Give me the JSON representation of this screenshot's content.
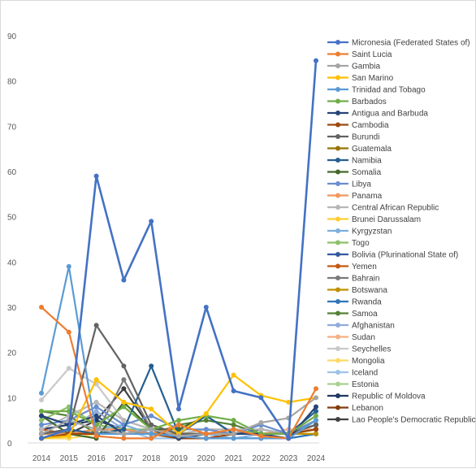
{
  "chart_data": {
    "type": "line",
    "title": "",
    "xlabel": "",
    "ylabel": "",
    "ylim": [
      0,
      90
    ],
    "y_ticks": [
      0,
      10,
      20,
      30,
      40,
      50,
      60,
      70,
      80,
      90
    ],
    "x": [
      "2014",
      "2015",
      "2016",
      "2017",
      "2018",
      "2019",
      "2020",
      "2021",
      "2022",
      "2023",
      "2024"
    ],
    "grid": false,
    "legend_position": "right",
    "series": [
      {
        "name": "Micronesia (Federated States of)",
        "color": "#4472C4",
        "values": [
          1,
          3,
          59,
          36,
          49,
          7.5,
          30,
          11.5,
          10,
          1,
          84.5
        ]
      },
      {
        "name": "Saint Lucia",
        "color": "#ED7D31",
        "values": [
          30,
          24.5,
          1.5,
          1,
          1,
          4,
          2,
          3,
          1.5,
          1,
          12
        ]
      },
      {
        "name": "Gambia",
        "color": "#A5A5A5",
        "values": [
          2,
          5,
          3,
          2,
          3,
          1.5,
          2,
          2,
          4.5,
          5.5,
          10
        ]
      },
      {
        "name": "San Marino",
        "color": "#FFC000",
        "values": [
          1,
          1.5,
          14,
          9,
          7.5,
          2,
          6.5,
          15,
          10.5,
          9,
          10
        ]
      },
      {
        "name": "Trinidad and Tobago",
        "color": "#5B9BD5",
        "values": [
          11,
          39,
          2,
          2,
          2,
          1.5,
          1,
          1,
          1,
          1,
          5
        ]
      },
      {
        "name": "Barbados",
        "color": "#70AD47",
        "values": [
          7,
          7,
          4,
          8,
          3,
          5,
          6,
          5,
          2,
          2,
          6
        ]
      },
      {
        "name": "Antigua and Barbuda",
        "color": "#264478",
        "values": [
          6,
          4,
          6,
          2,
          3,
          1,
          2,
          2,
          2,
          1,
          8
        ]
      },
      {
        "name": "Cambodia",
        "color": "#9E480E",
        "values": [
          1,
          2,
          2,
          2,
          2,
          1,
          1,
          2,
          2,
          2,
          3
        ]
      },
      {
        "name": "Burundi",
        "color": "#636363",
        "values": [
          2,
          3,
          26,
          17,
          4,
          2,
          2,
          2,
          2,
          2,
          4
        ]
      },
      {
        "name": "Guatemala",
        "color": "#997300",
        "values": [
          1,
          2,
          2,
          2,
          2,
          2,
          2,
          2,
          2,
          2,
          3
        ]
      },
      {
        "name": "Namibia",
        "color": "#255E91",
        "values": [
          2,
          3,
          2,
          3,
          17,
          2,
          6,
          2,
          2,
          2,
          7
        ]
      },
      {
        "name": "Somalia",
        "color": "#43682B",
        "values": [
          6,
          2,
          1,
          9,
          3,
          3,
          6,
          2,
          2,
          2,
          4
        ]
      },
      {
        "name": "Libya",
        "color": "#698ED0",
        "values": [
          4,
          5,
          8,
          4,
          6,
          3,
          3,
          2,
          4,
          2,
          5
        ]
      },
      {
        "name": "Panama",
        "color": "#F1975A",
        "values": [
          2,
          2,
          3,
          3,
          2,
          4,
          2,
          2,
          2,
          2,
          3
        ]
      },
      {
        "name": "Central African Republic",
        "color": "#B7B7B7",
        "values": [
          3,
          6,
          9,
          5,
          3,
          2,
          3,
          3,
          3,
          2,
          4
        ]
      },
      {
        "name": "Brunei Darussalam",
        "color": "#FFCD33",
        "values": [
          1,
          2,
          3,
          2,
          2,
          1,
          2,
          2,
          2,
          2,
          3
        ]
      },
      {
        "name": "Kyrgyzstan",
        "color": "#7CAFDD",
        "values": [
          2,
          2,
          3,
          4,
          2,
          1,
          2,
          1,
          2,
          2,
          3
        ]
      },
      {
        "name": "Togo",
        "color": "#8CC168",
        "values": [
          5,
          8,
          4,
          3,
          3,
          2,
          2,
          3,
          2,
          2,
          4
        ]
      },
      {
        "name": "Bolivia (Plurinational State of)",
        "color": "#335AA1",
        "values": [
          2,
          3,
          2,
          2,
          2,
          2,
          2,
          2,
          3,
          2,
          4
        ]
      },
      {
        "name": "Yemen",
        "color": "#C65911",
        "values": [
          3,
          2,
          2,
          2,
          2,
          2,
          2,
          2,
          2,
          2,
          3
        ]
      },
      {
        "name": "Bahrain",
        "color": "#7B7B7B",
        "values": [
          2,
          2,
          2,
          14,
          3,
          2,
          2,
          2,
          2,
          2,
          3
        ]
      },
      {
        "name": "Botswana",
        "color": "#BF9000",
        "values": [
          2,
          2,
          2,
          2,
          2,
          2,
          2,
          2,
          2,
          2,
          2
        ]
      },
      {
        "name": "Rwanda",
        "color": "#2E75B6",
        "values": [
          1,
          2,
          2,
          2,
          2,
          1,
          1,
          1,
          1,
          1,
          2
        ]
      },
      {
        "name": "Samoa",
        "color": "#548235",
        "values": [
          7,
          6,
          2,
          3,
          2,
          4,
          5,
          4,
          2,
          2,
          5
        ]
      },
      {
        "name": "Afghanistan",
        "color": "#8FAADC",
        "values": [
          2,
          3,
          7,
          3,
          2,
          2,
          2,
          2,
          3,
          2,
          4
        ]
      },
      {
        "name": "Sudan",
        "color": "#F4B183",
        "values": [
          2,
          2,
          2,
          2,
          2,
          2,
          2,
          2,
          2,
          3,
          3
        ]
      },
      {
        "name": "Seychelles",
        "color": "#C9C9C9",
        "values": [
          9.5,
          16.5,
          13,
          5,
          3,
          2,
          3,
          3,
          2,
          2,
          4
        ]
      },
      {
        "name": "Mongolia",
        "color": "#FFD966",
        "values": [
          1,
          1,
          2,
          2,
          2,
          1,
          2,
          2,
          2,
          2,
          2
        ]
      },
      {
        "name": "Iceland",
        "color": "#9DC3E6",
        "values": [
          1,
          2,
          3,
          3,
          1,
          1,
          1,
          1,
          1,
          1,
          2
        ]
      },
      {
        "name": "Estonia",
        "color": "#A9D18E",
        "values": [
          1,
          2,
          2,
          2,
          2,
          2,
          2,
          2,
          2,
          2,
          2
        ]
      },
      {
        "name": "Republic of Moldova",
        "color": "#203864",
        "values": [
          3,
          4,
          5,
          3,
          2,
          2,
          2,
          2,
          2,
          2,
          3
        ]
      },
      {
        "name": "Lebanon",
        "color": "#843C0C",
        "values": [
          2,
          2,
          2,
          2,
          2,
          2,
          2,
          2,
          2,
          2,
          3
        ]
      },
      {
        "name": "Lao People's Democratic Republic",
        "color": "#404040",
        "values": [
          2,
          2,
          5,
          12,
          3,
          2,
          2,
          2,
          2,
          2,
          3
        ]
      }
    ]
  }
}
